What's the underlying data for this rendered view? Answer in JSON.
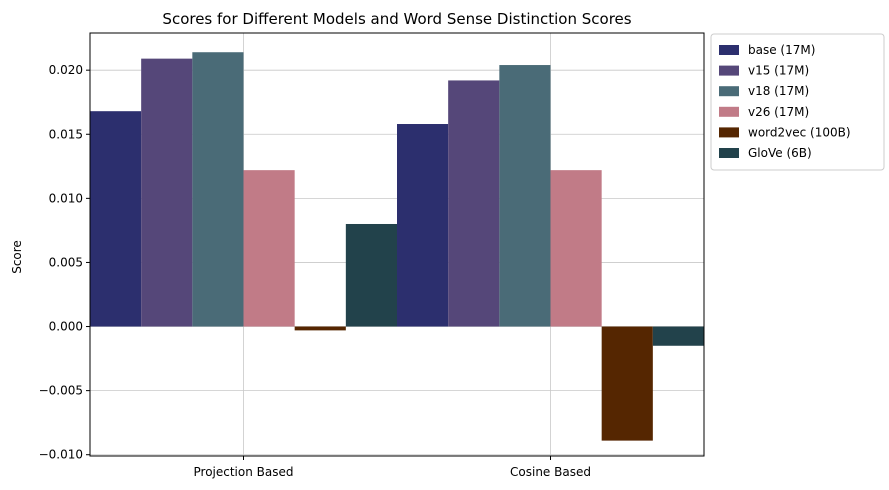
{
  "chart_data": {
    "type": "bar",
    "title": "Scores for Different Models and Word Sense Distinction Scores",
    "xlabel": "",
    "ylabel": "Score",
    "categories": [
      "Projection Based",
      "Cosine Based"
    ],
    "ylim": [
      -0.0101,
      0.0229
    ],
    "yticks": [
      -0.01,
      -0.005,
      0.0,
      0.005,
      0.01,
      0.015,
      0.02
    ],
    "ytick_labels": [
      "−0.010",
      "−0.005",
      "0.000",
      "0.005",
      "0.010",
      "0.015",
      "0.020"
    ],
    "grid": true,
    "legend_position": "outside top-right",
    "series": [
      {
        "name": "base (17M)",
        "color": "#2c2f6e",
        "values": [
          0.0168,
          0.0158
        ]
      },
      {
        "name": "v15 (17M)",
        "color": "#554779",
        "values": [
          0.0209,
          0.0192
        ]
      },
      {
        "name": "v18 (17M)",
        "color": "#4a6b77",
        "values": [
          0.0214,
          0.0204
        ]
      },
      {
        "name": "v26 (17M)",
        "color": "#c17b87",
        "values": [
          0.0122,
          0.0122
        ]
      },
      {
        "name": "word2vec (100B)",
        "color": "#552601",
        "values": [
          -0.0003,
          -0.0089
        ]
      },
      {
        "name": "GloVe (6B)",
        "color": "#22424b",
        "values": [
          0.008,
          -0.0015
        ]
      }
    ]
  }
}
